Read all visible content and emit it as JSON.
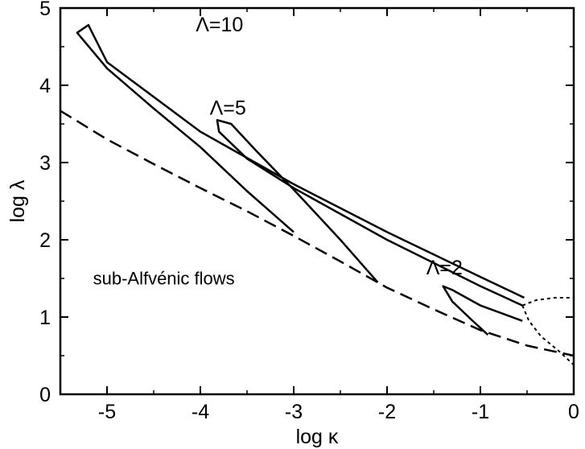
{
  "chart_data": {
    "type": "line",
    "xlabel": "log κ",
    "ylabel": "log λ",
    "xlim": [
      -5.5,
      0
    ],
    "ylim": [
      0,
      5
    ],
    "x_ticks": [
      -5,
      -4,
      -3,
      -2,
      -1,
      0
    ],
    "y_ticks": [
      0,
      1,
      2,
      3,
      4,
      5
    ],
    "grid": false,
    "series": [
      {
        "name": "Λ=10",
        "style": "solid",
        "points": [
          [
            -0.53,
            1.25
          ],
          [
            -1.0,
            1.52
          ],
          [
            -2.0,
            2.1
          ],
          [
            -3.0,
            2.72
          ],
          [
            -4.0,
            3.4
          ],
          [
            -5.0,
            4.3
          ],
          [
            -5.2,
            4.78
          ],
          [
            -5.32,
            4.68
          ],
          [
            -5.0,
            4.22
          ],
          [
            -4.5,
            3.7
          ],
          [
            -4.0,
            3.2
          ],
          [
            -3.5,
            2.63
          ],
          [
            -3.0,
            2.1
          ]
        ]
      },
      {
        "name": "Λ=5",
        "style": "solid",
        "points": [
          [
            -0.55,
            1.15
          ],
          [
            -1.0,
            1.4
          ],
          [
            -2.0,
            2.0
          ],
          [
            -3.0,
            2.67
          ],
          [
            -3.5,
            3.05
          ],
          [
            -3.8,
            3.4
          ],
          [
            -3.82,
            3.55
          ],
          [
            -3.67,
            3.5
          ],
          [
            -3.4,
            3.15
          ],
          [
            -3.0,
            2.65
          ],
          [
            -2.5,
            2.0
          ],
          [
            -2.1,
            1.45
          ]
        ]
      },
      {
        "name": "Λ=2",
        "style": "solid",
        "points": [
          [
            -0.55,
            0.95
          ],
          [
            -1.0,
            1.15
          ],
          [
            -1.3,
            1.35
          ],
          [
            -1.4,
            1.4
          ],
          [
            -1.3,
            1.2
          ],
          [
            -1.1,
            0.97
          ],
          [
            -0.92,
            0.77
          ]
        ]
      },
      {
        "name": "",
        "style": "dashed",
        "points": [
          [
            -5.5,
            3.67
          ],
          [
            -5.0,
            3.3
          ],
          [
            -4.5,
            2.98
          ],
          [
            -4.0,
            2.67
          ],
          [
            -3.5,
            2.37
          ],
          [
            -3.0,
            2.05
          ],
          [
            -2.5,
            1.72
          ],
          [
            -2.0,
            1.38
          ],
          [
            -1.5,
            1.1
          ],
          [
            -1.0,
            0.83
          ],
          [
            -0.5,
            0.63
          ],
          [
            0.0,
            0.5
          ]
        ]
      },
      {
        "name": "",
        "style": "dotted",
        "points": [
          [
            -0.55,
            1.15
          ],
          [
            -0.4,
            1.22
          ],
          [
            -0.2,
            1.25
          ],
          [
            0.0,
            1.25
          ]
        ]
      },
      {
        "name": "",
        "style": "dotted",
        "points": [
          [
            -0.55,
            1.15
          ],
          [
            -0.48,
            0.95
          ],
          [
            -0.35,
            0.75
          ],
          [
            -0.15,
            0.55
          ],
          [
            0.0,
            0.38
          ]
        ]
      }
    ],
    "annotations": [
      {
        "text": "Λ=10",
        "x": -4.05,
        "y": 4.7
      },
      {
        "text": "Λ=5",
        "x": -3.9,
        "y": 3.62
      },
      {
        "text": "Λ=2",
        "x": -1.58,
        "y": 1.55
      },
      {
        "text": "sub-Alfvénic flows",
        "x": -5.15,
        "y": 1.42
      }
    ]
  }
}
